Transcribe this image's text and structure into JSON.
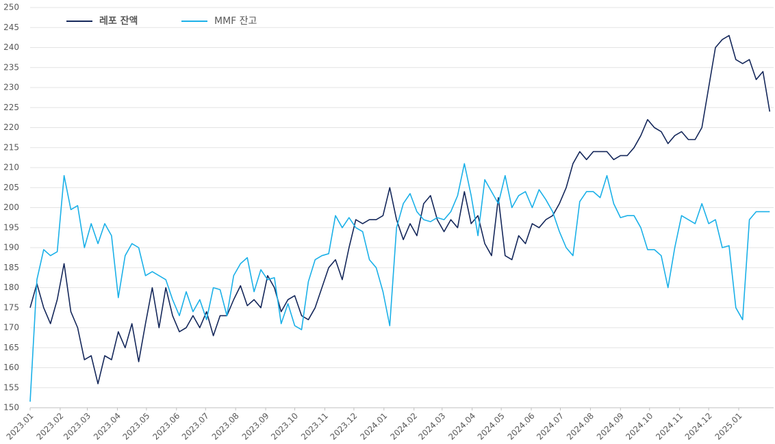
{
  "chart_data": {
    "type": "line",
    "x": [
      0,
      7,
      14,
      21,
      28,
      35,
      42,
      49,
      56,
      63,
      70,
      77,
      84,
      91,
      98,
      105,
      112,
      119,
      126,
      133,
      140,
      147,
      154,
      161,
      168,
      175,
      182,
      189,
      196,
      203,
      210,
      217,
      224,
      231,
      238,
      245,
      252,
      259,
      266,
      273,
      280,
      287,
      294,
      301,
      308,
      315,
      322,
      329,
      336,
      343,
      350,
      357,
      364,
      371,
      378,
      385,
      392,
      399,
      406,
      413,
      420,
      427,
      434,
      441,
      448,
      455,
      462,
      469,
      476,
      483,
      490,
      497,
      504,
      511,
      518,
      525,
      532,
      539,
      546,
      553,
      560,
      567,
      574,
      581,
      588,
      595,
      602,
      609,
      616,
      623,
      630,
      637,
      644,
      651,
      658,
      665,
      672,
      679,
      686,
      693,
      700,
      707,
      714,
      721,
      728,
      735,
      742,
      749,
      756,
      763
    ],
    "xlim": [
      0,
      767
    ],
    "xticks": [
      {
        "value": 0,
        "label": "2023.01"
      },
      {
        "value": 31,
        "label": "2023.02"
      },
      {
        "value": 59,
        "label": "2023.03"
      },
      {
        "value": 90,
        "label": "2023.04"
      },
      {
        "value": 120,
        "label": "2023.05"
      },
      {
        "value": 151,
        "label": "2023.06"
      },
      {
        "value": 181,
        "label": "2023.07"
      },
      {
        "value": 212,
        "label": "2023.08"
      },
      {
        "value": 243,
        "label": "2023.09"
      },
      {
        "value": 273,
        "label": "2023.10"
      },
      {
        "value": 304,
        "label": "2023.11"
      },
      {
        "value": 334,
        "label": "2023.12"
      },
      {
        "value": 365,
        "label": "2024.01"
      },
      {
        "value": 396,
        "label": "2024.02"
      },
      {
        "value": 425,
        "label": "2024.03"
      },
      {
        "value": 456,
        "label": "2024.04"
      },
      {
        "value": 486,
        "label": "2024.05"
      },
      {
        "value": 517,
        "label": "2024.06"
      },
      {
        "value": 547,
        "label": "2024.07"
      },
      {
        "value": 578,
        "label": "2024.08"
      },
      {
        "value": 609,
        "label": "2024.09"
      },
      {
        "value": 639,
        "label": "2024.10"
      },
      {
        "value": 670,
        "label": "2024.11"
      },
      {
        "value": 700,
        "label": "2024.12"
      },
      {
        "value": 731,
        "label": "2025.01"
      }
    ],
    "ylim": [
      150,
      250
    ],
    "yticks": [
      150,
      155,
      160,
      165,
      170,
      175,
      180,
      185,
      190,
      195,
      200,
      205,
      210,
      215,
      220,
      225,
      230,
      235,
      240,
      245,
      250
    ],
    "grid": true,
    "legend": "top-left",
    "series": [
      {
        "name": "레포 잔액",
        "color": "#14275a",
        "values": [
          175,
          181,
          175,
          171,
          177,
          186,
          174,
          170,
          162,
          163,
          156,
          163,
          162,
          169,
          165,
          171,
          161.5,
          171,
          180,
          170,
          180,
          173,
          169,
          170,
          173,
          170,
          174,
          168,
          173,
          173,
          177,
          180.5,
          175.5,
          177,
          175,
          183,
          180,
          174,
          177,
          178,
          173,
          172,
          175,
          180,
          185,
          187,
          182,
          190,
          197,
          196,
          197,
          197,
          198,
          205,
          197,
          192,
          196,
          193,
          201,
          203,
          197,
          194,
          197,
          195,
          204,
          196,
          198,
          191,
          188,
          202.5,
          188,
          187,
          193,
          191,
          196,
          195,
          197,
          198,
          201,
          205,
          211,
          214,
          212,
          214,
          214,
          214,
          212,
          213,
          213,
          215,
          218,
          222,
          220,
          219,
          216,
          218,
          219,
          217,
          217,
          220,
          230,
          240,
          242,
          243,
          237,
          236,
          237,
          232,
          234,
          224
        ]
      },
      {
        "name": "MMF 잔고",
        "color": "#1ab0e8",
        "values": [
          151.5,
          182,
          189.5,
          188,
          189,
          208,
          199.5,
          200.5,
          190,
          196,
          191,
          196,
          193,
          177.5,
          188,
          191,
          190,
          183,
          184,
          183,
          182,
          177,
          173,
          179,
          174,
          177,
          172,
          180,
          179.5,
          173,
          183,
          186,
          187.5,
          179,
          184.5,
          182,
          182.5,
          171,
          176,
          170.5,
          169.5,
          181.5,
          187,
          188,
          188.5,
          198,
          195,
          197.5,
          195,
          194,
          187,
          185,
          179,
          170.5,
          195,
          201,
          203.5,
          199,
          197,
          196.5,
          197.5,
          197,
          199,
          203,
          211,
          203,
          193,
          207,
          204,
          201,
          208,
          200,
          203,
          204,
          200,
          204.5,
          202,
          199,
          194,
          190,
          188,
          201.5,
          204,
          204,
          202.5,
          208,
          201,
          197.5,
          198,
          198,
          195,
          189.5,
          189.5,
          188,
          180,
          190,
          198,
          197,
          196,
          201,
          196,
          197,
          190,
          190.5,
          175,
          172,
          197,
          199,
          199,
          199
        ]
      }
    ]
  }
}
